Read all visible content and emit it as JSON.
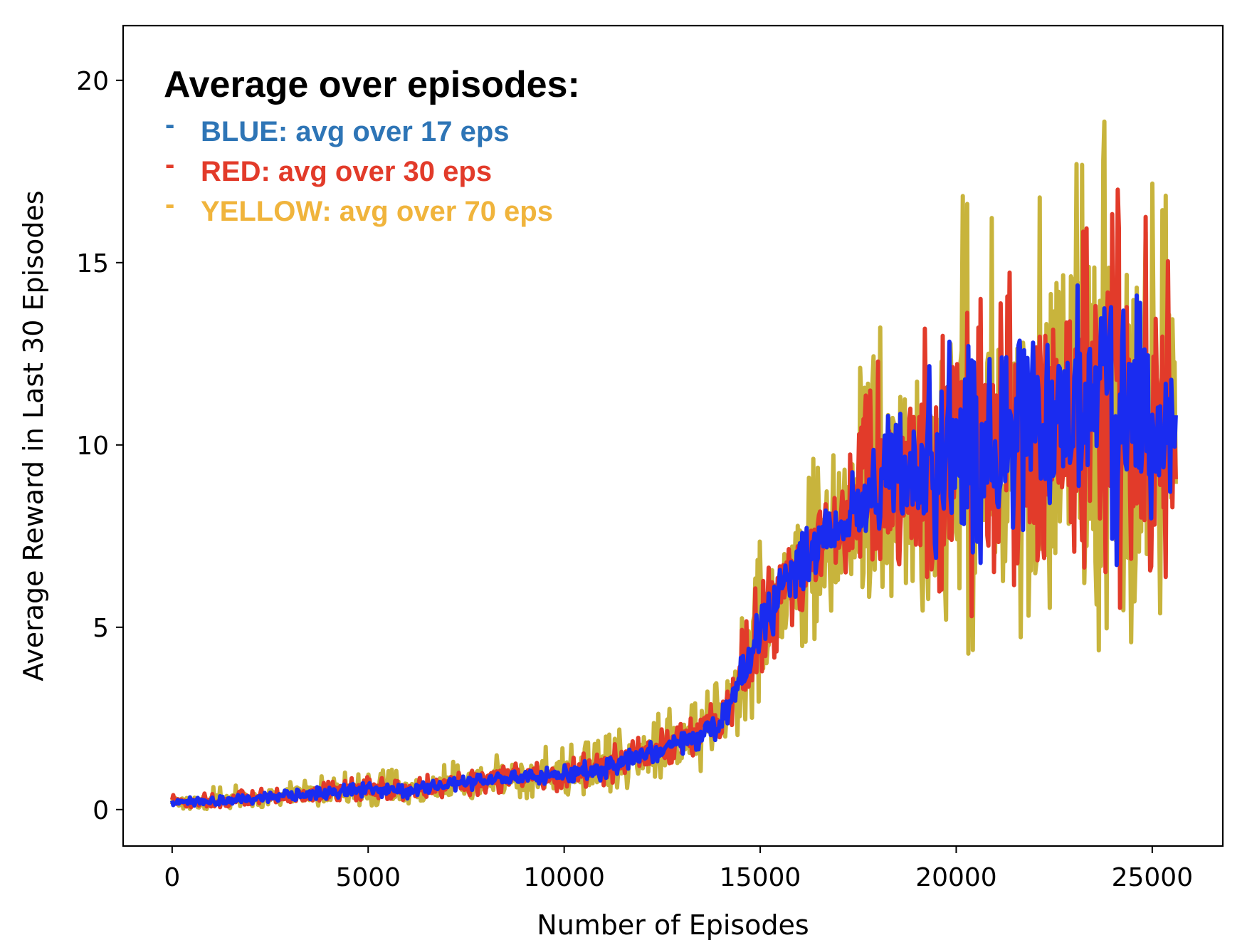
{
  "chart_data": {
    "type": "line",
    "xlabel": "Number of Episodes",
    "ylabel": "Average Reward in Last 30 Episodes",
    "xlim": [
      -1250,
      26800
    ],
    "ylim": [
      -1,
      21.5
    ],
    "xticks": [
      0,
      5000,
      10000,
      15000,
      20000,
      25000
    ],
    "yticks": [
      0,
      5,
      10,
      15,
      20
    ],
    "grid": false,
    "legend": {
      "position": "top-left",
      "title": "Average over episodes:",
      "entries": [
        {
          "marker": "-",
          "label": "BLUE: avg over 17 eps",
          "color": "#2e75b6"
        },
        {
          "marker": "-",
          "label": "RED: avg over 30 eps",
          "color": "#e23b2a"
        },
        {
          "marker": "-",
          "label": "YELLOW: avg over 70 eps",
          "color": "#f0b43c"
        }
      ]
    },
    "series": [
      {
        "name": "YELLOW",
        "color": "#c8b43c",
        "x": [
          0,
          1000,
          2000,
          3000,
          4000,
          5000,
          6000,
          7000,
          8000,
          9000,
          10000,
          11000,
          12000,
          13000,
          14000,
          15000,
          16000,
          17000,
          18000,
          19000,
          20000,
          21000,
          22000,
          23000,
          24000,
          25000,
          25600
        ],
        "y": [
          0.2,
          0.2,
          0.3,
          0.4,
          0.45,
          0.55,
          0.5,
          0.7,
          0.8,
          0.9,
          1.0,
          1.1,
          1.5,
          1.8,
          2.4,
          4.8,
          6.8,
          7.8,
          8.5,
          9.4,
          9.8,
          9.6,
          10.4,
          11.0,
          11.0,
          10.6,
          10.5
        ],
        "low": [
          0.0,
          0.0,
          0.05,
          0.1,
          0.1,
          0.1,
          0.1,
          0.2,
          0.2,
          0.2,
          0.3,
          0.3,
          0.6,
          0.9,
          1.2,
          2.8,
          4.2,
          5.2,
          6.0,
          5.5,
          3.5,
          3.3,
          5.5,
          5.0,
          4.0,
          3.9,
          5.5
        ],
        "high": [
          0.5,
          0.7,
          0.7,
          0.8,
          1.0,
          1.1,
          1.1,
          1.3,
          1.5,
          1.7,
          1.8,
          2.0,
          2.5,
          2.9,
          3.8,
          7.5,
          9.1,
          10.7,
          13.4,
          14.7,
          17.8,
          16.1,
          18.5,
          19.4,
          20.5,
          17.5,
          17.4
        ]
      },
      {
        "name": "RED",
        "color": "#e23b2a",
        "x": [
          0,
          1000,
          2000,
          3000,
          4000,
          5000,
          6000,
          7000,
          8000,
          9000,
          10000,
          11000,
          12000,
          13000,
          14000,
          15000,
          16000,
          17000,
          18000,
          19000,
          20000,
          21000,
          22000,
          23000,
          24000,
          25000,
          25600
        ],
        "y": [
          0.2,
          0.2,
          0.3,
          0.4,
          0.45,
          0.55,
          0.5,
          0.7,
          0.8,
          0.9,
          1.0,
          1.1,
          1.5,
          1.8,
          2.4,
          4.8,
          6.8,
          7.8,
          8.5,
          9.4,
          9.8,
          9.6,
          10.4,
          11.0,
          11.0,
          10.6,
          10.5
        ],
        "low": [
          0.05,
          0.05,
          0.1,
          0.2,
          0.2,
          0.25,
          0.2,
          0.35,
          0.4,
          0.45,
          0.5,
          0.55,
          0.9,
          1.2,
          1.6,
          3.4,
          5.0,
          6.0,
          6.8,
          6.5,
          5.0,
          5.3,
          6.8,
          6.6,
          5.5,
          5.2,
          6.5
        ],
        "high": [
          0.4,
          0.5,
          0.55,
          0.65,
          0.8,
          0.9,
          0.85,
          1.05,
          1.2,
          1.35,
          1.5,
          1.7,
          2.1,
          2.4,
          3.2,
          6.5,
          8.3,
          9.6,
          12.3,
          13.9,
          14.5,
          14.5,
          16.6,
          15.9,
          17.5,
          16.1,
          15.2
        ]
      },
      {
        "name": "BLUE",
        "color": "#1a2cf0",
        "x": [
          0,
          1000,
          2000,
          3000,
          4000,
          5000,
          6000,
          7000,
          8000,
          9000,
          10000,
          11000,
          12000,
          13000,
          14000,
          15000,
          16000,
          17000,
          18000,
          19000,
          20000,
          21000,
          22000,
          23000,
          24000,
          25000,
          25600
        ],
        "y": [
          0.2,
          0.2,
          0.3,
          0.4,
          0.45,
          0.55,
          0.5,
          0.7,
          0.8,
          0.9,
          1.0,
          1.1,
          1.5,
          1.8,
          2.4,
          4.8,
          6.8,
          7.8,
          8.5,
          9.4,
          9.8,
          9.6,
          10.4,
          11.0,
          11.0,
          10.6,
          10.5
        ],
        "low": [
          0.05,
          0.1,
          0.15,
          0.25,
          0.3,
          0.35,
          0.3,
          0.5,
          0.55,
          0.6,
          0.7,
          0.8,
          1.2,
          1.45,
          1.9,
          4.0,
          5.8,
          6.9,
          7.4,
          7.4,
          5.8,
          7.2,
          7.6,
          8.3,
          6.4,
          7.3,
          8.9
        ],
        "high": [
          0.35,
          0.35,
          0.45,
          0.55,
          0.65,
          0.75,
          0.7,
          0.85,
          1.0,
          1.1,
          1.25,
          1.4,
          1.8,
          2.1,
          2.8,
          5.6,
          7.6,
          8.6,
          10.5,
          11.7,
          13.8,
          12.8,
          13.1,
          14.6,
          13.8,
          14.3,
          11.2
        ]
      }
    ]
  }
}
